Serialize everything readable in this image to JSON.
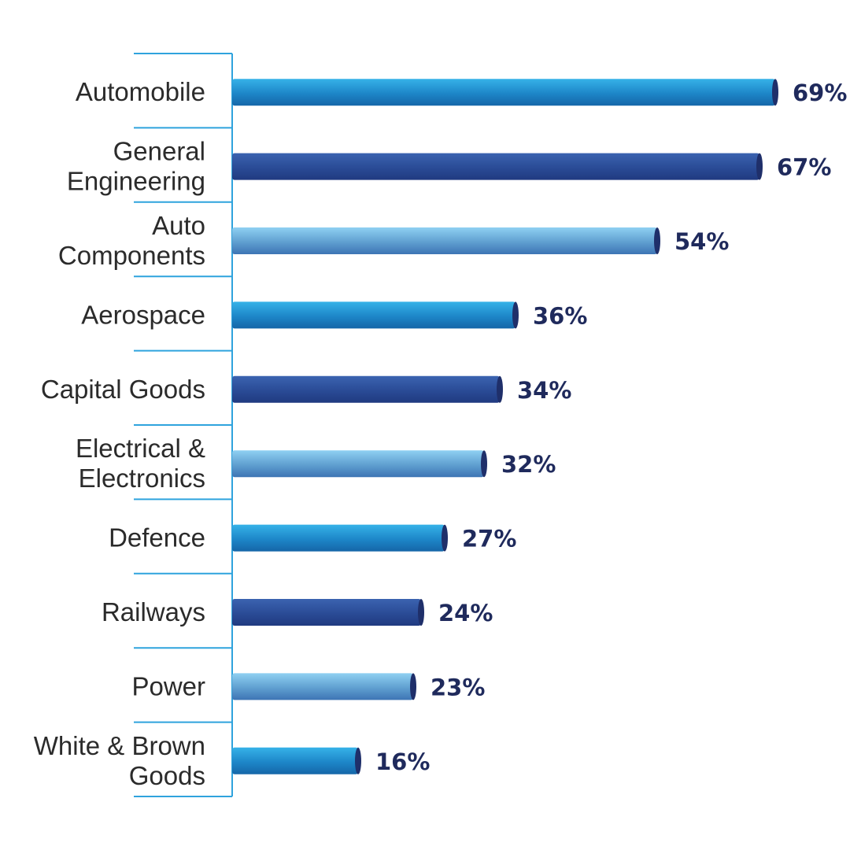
{
  "chart_data": {
    "type": "bar",
    "orientation": "horizontal",
    "categories": [
      [
        "Automobile"
      ],
      [
        "General",
        "Engineering"
      ],
      [
        "Auto",
        "Components"
      ],
      [
        "Aerospace"
      ],
      [
        "Capital Goods"
      ],
      [
        "Electrical &",
        "Electronics"
      ],
      [
        "Defence"
      ],
      [
        "Railways"
      ],
      [
        "Power"
      ],
      [
        "White & Brown",
        "Goods"
      ]
    ],
    "values": [
      69,
      67,
      54,
      36,
      34,
      32,
      27,
      24,
      23,
      16
    ],
    "value_labels": [
      "69%",
      "67%",
      "54%",
      "36%",
      "34%",
      "32%",
      "27%",
      "24%",
      "23%",
      "16%"
    ],
    "bar_styles": [
      "cyan",
      "navy",
      "light",
      "cyan",
      "navy",
      "light",
      "cyan",
      "navy",
      "light",
      "cyan"
    ],
    "xlim": [
      0,
      69
    ],
    "grid": false,
    "legend": "none"
  },
  "colors": {
    "axis": "#2fa3dd",
    "cyan": [
      "#36b2e8",
      "#1d86c8",
      "#1566a8"
    ],
    "navy": [
      "#3b63b0",
      "#2a4b96",
      "#203a80"
    ],
    "light": [
      "#8fd0f2",
      "#5f9fd0",
      "#3d74b4"
    ],
    "cap": "#1f2f6a",
    "value_text": "#1f2a5c"
  }
}
